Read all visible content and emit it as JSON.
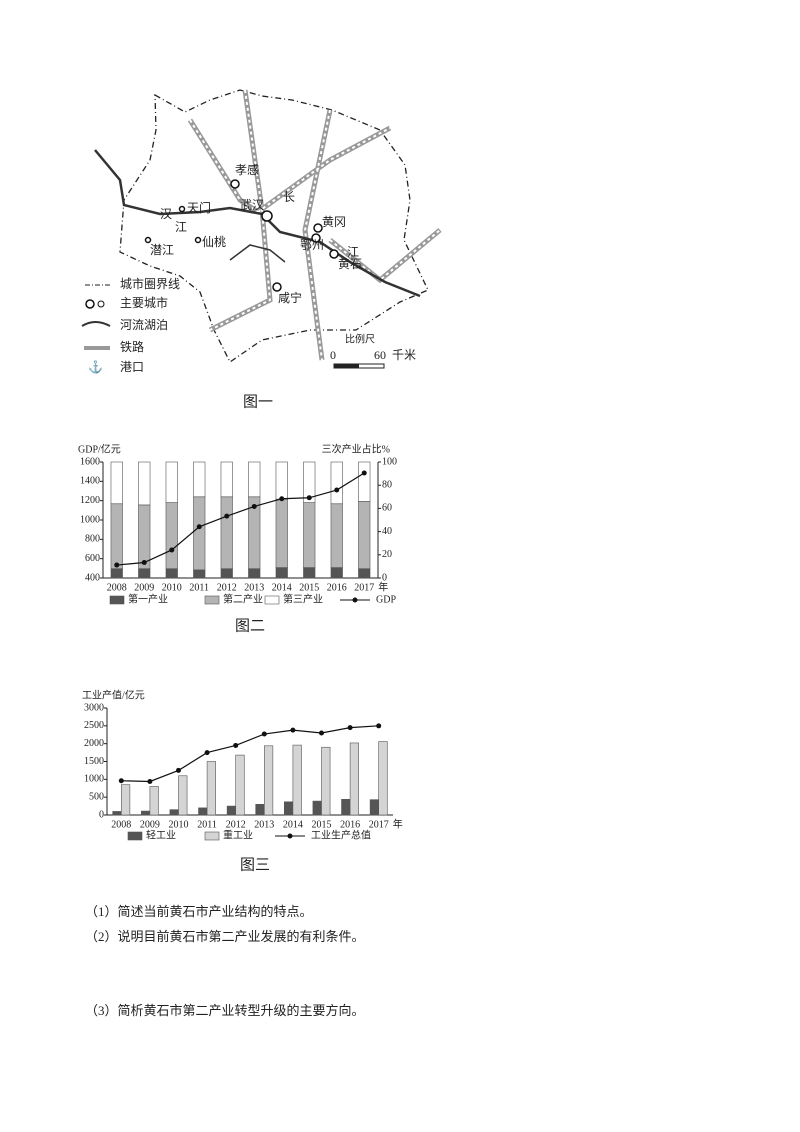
{
  "map": {
    "places": [
      "孝感",
      "天门",
      "汉",
      "江",
      "武汉",
      "黄冈",
      "潜江",
      "仙桃",
      "鄂州",
      "黄石",
      "长",
      "江",
      "咸宁"
    ],
    "legend": [
      "城市圈界线",
      "主要城市",
      "河流湖泊",
      "铁路",
      "港口"
    ],
    "scale": {
      "title": "比例尺",
      "start": "0",
      "end": "60",
      "unit": "千米"
    }
  },
  "captions": [
    "图一",
    "图二",
    "图三"
  ],
  "chart_data": [
    {
      "type": "bar",
      "stacked": true,
      "y_label": "GDP/亿元",
      "y2_label": "三次产业占比%",
      "x_unit": "年",
      "categories": [
        "2008",
        "2009",
        "2010",
        "2011",
        "2012",
        "2013",
        "2014",
        "2015",
        "2016",
        "2017"
      ],
      "ylim": [
        400,
        1600
      ],
      "yticks": [
        400,
        600,
        800,
        1000,
        1200,
        1400,
        1600
      ],
      "y2lim": [
        0,
        100
      ],
      "y2ticks": [
        0,
        20,
        40,
        60,
        80,
        100
      ],
      "series": [
        {
          "name": "第一产业",
          "color": "#555555",
          "axis": "y2",
          "values": [
            8,
            8,
            8,
            7,
            8,
            8,
            9,
            9,
            9,
            8
          ]
        },
        {
          "name": "第二产业",
          "color": "#b4b4b4",
          "axis": "y2",
          "values": [
            56,
            55,
            57,
            63,
            62,
            62,
            59,
            56,
            55,
            58
          ]
        },
        {
          "name": "第三产业",
          "color": "#ffffff",
          "axis": "y2",
          "values": [
            36,
            37,
            35,
            30,
            30,
            30,
            32,
            35,
            36,
            34
          ]
        },
        {
          "name": "GDP",
          "type": "line",
          "color": "#111111",
          "values": [
            534,
            560,
            690,
            930,
            1040,
            1140,
            1220,
            1230,
            1310,
            1486
          ]
        }
      ]
    },
    {
      "type": "bar",
      "stacked": false,
      "y_label": "工业产值/亿元",
      "x_unit": "年",
      "categories": [
        "2008",
        "2009",
        "2010",
        "2011",
        "2012",
        "2013",
        "2014",
        "2015",
        "2016",
        "2017"
      ],
      "ylim": [
        0,
        3000
      ],
      "yticks": [
        0,
        500,
        1000,
        1500,
        2000,
        2500,
        3000
      ],
      "series": [
        {
          "name": "轻工业",
          "color": "#555555",
          "values": [
            100,
            110,
            150,
            200,
            250,
            300,
            370,
            390,
            440,
            430
          ]
        },
        {
          "name": "重工业",
          "color": "#d4d4d4",
          "values": [
            850,
            800,
            1100,
            1500,
            1680,
            1940,
            1960,
            1900,
            2020,
            2060
          ]
        },
        {
          "name": "工业生产总值",
          "type": "line",
          "color": "#111111",
          "values": [
            960,
            940,
            1250,
            1750,
            1950,
            2270,
            2380,
            2300,
            2450,
            2500
          ]
        }
      ]
    }
  ],
  "questions": [
    "（1）简述当前黄石市产业结构的特点。",
    "（2）说明目前黄石市第二产业发展的有利条件。",
    "（3）简析黄石市第二产业转型升级的主要方向。"
  ]
}
